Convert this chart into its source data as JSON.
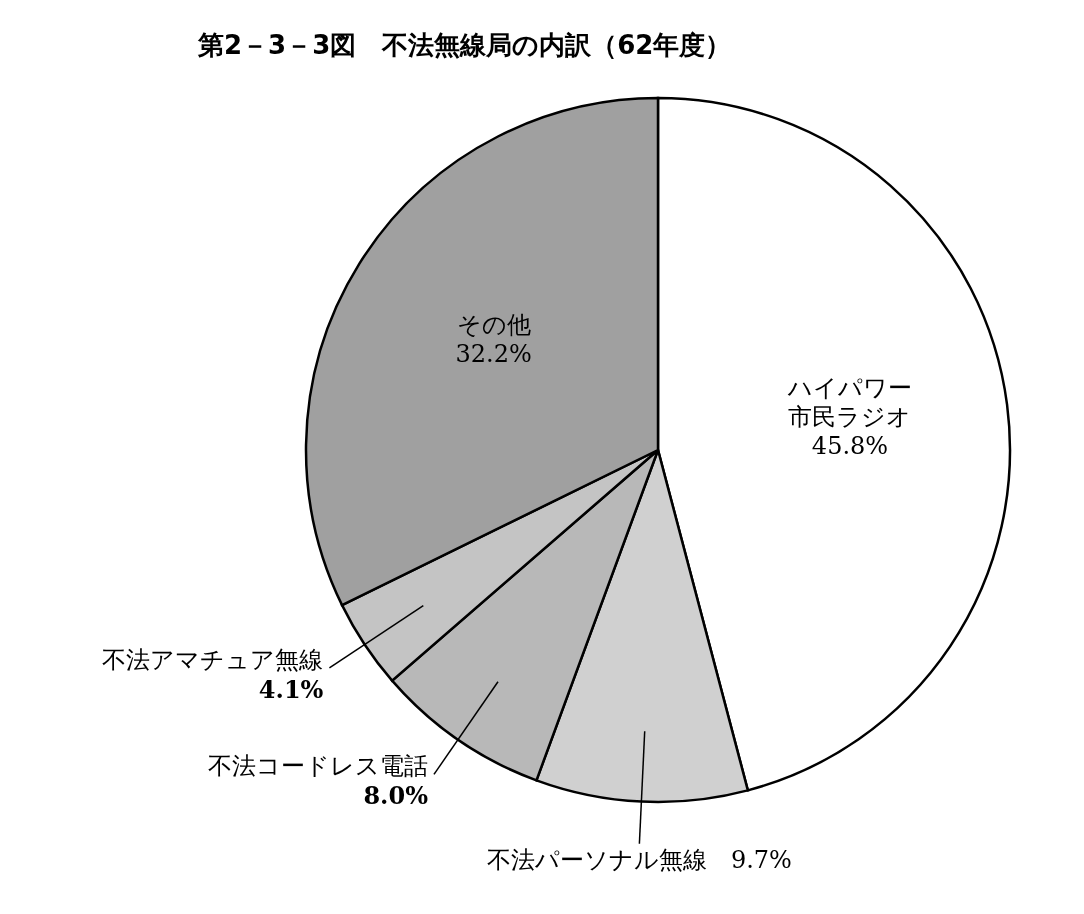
{
  "chart_data": {
    "type": "pie",
    "title": "第2－3－3図　不法無線局の内訳（62年度）",
    "categories": [
      "ハイパワー市民ラジオ",
      "不法パーソナル無線",
      "不法コードレス電話",
      "不法アマチュア無線",
      "その他"
    ],
    "values": [
      45.8,
      9.7,
      8.0,
      4.1,
      32.2
    ],
    "value_labels": [
      "45.8%",
      "9.7%",
      "8.0%",
      "4.1%",
      "32.2%"
    ],
    "colors": [
      "#ffffff",
      "#d0d0d0",
      "#b8b8b8",
      "#c4c4c4",
      "#a0a0a0"
    ]
  }
}
